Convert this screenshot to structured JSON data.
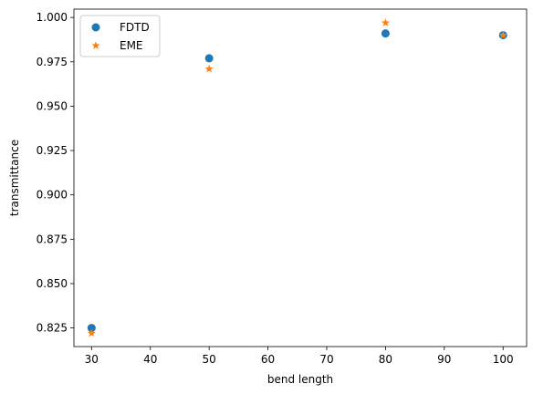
{
  "chart_data": {
    "type": "scatter",
    "title": "",
    "xlabel": "bend length",
    "ylabel": "transmittance",
    "x": [
      30,
      50,
      80,
      100
    ],
    "xlim": [
      27,
      104
    ],
    "ylim": [
      0.8145,
      1.0047
    ],
    "xticks": [
      30,
      40,
      50,
      60,
      70,
      80,
      90,
      100
    ],
    "xtick_labels": [
      "30",
      "40",
      "50",
      "60",
      "70",
      "80",
      "90",
      "100"
    ],
    "yticks": [
      0.825,
      0.85,
      0.875,
      0.9,
      0.925,
      0.95,
      0.975,
      1.0
    ],
    "ytick_labels": [
      "0.825",
      "0.850",
      "0.875",
      "0.900",
      "0.925",
      "0.950",
      "0.975",
      "1.000"
    ],
    "grid": false,
    "legend_position": "top-left",
    "series": [
      {
        "name": "FDTD",
        "marker": "circle",
        "color": "#1f77b4",
        "values": [
          0.825,
          0.977,
          0.991,
          0.99
        ]
      },
      {
        "name": "EME",
        "marker": "star",
        "color": "#ff7f0e",
        "values": [
          0.822,
          0.971,
          0.997,
          0.99
        ]
      }
    ]
  }
}
